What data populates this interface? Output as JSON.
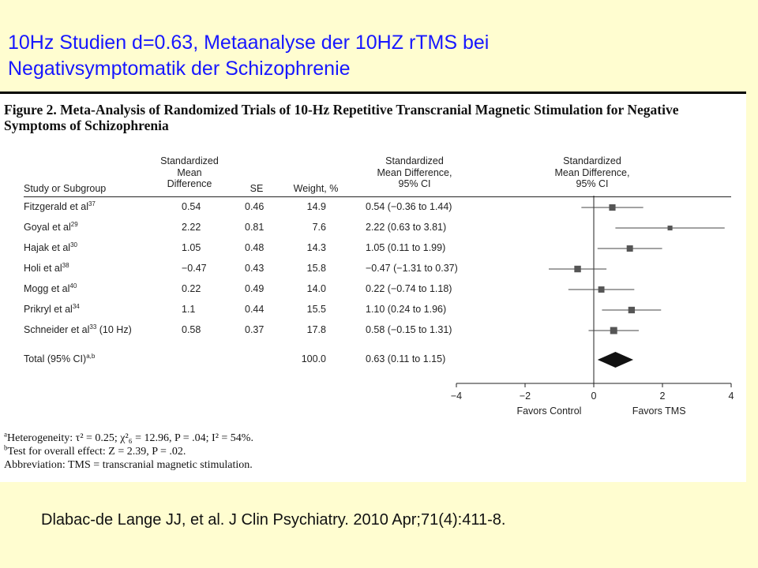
{
  "slide": {
    "title_line1": "10Hz Studien d=0.63, Metaanalyse der 10HZ rTMS bei",
    "title_line2": "Negativsymptomatik der Schizophrenie",
    "citation": "Dlabac-de Lange JJ, et al. J Clin Psychiatry. 2010 Apr;71(4):411-8."
  },
  "figure": {
    "caption_line1": "Figure 2. Meta-Analysis of Randomized Trials of 10-Hz Repetitive Transcranial Magnetic Stimulation for Negative",
    "caption_line2": "Symptoms of Schizophrenia",
    "headers": {
      "study": "Study or Subgroup",
      "smd": "Standardized\nMean\nDifference",
      "se": "SE",
      "weight": "Weight, %",
      "ci": "Standardized\nMean Difference,\n95% CI",
      "plot": "Standardized\nMean Difference,\n95% CI"
    },
    "footnotes": {
      "a_mark": "a",
      "a_text": "Heterogeneity: τ² = 0.25; χ²₆ = 12.96, P = .04; I² = 54%.",
      "b_mark": "b",
      "b_text": "Test for overall effect: Z = 2.39, P = .02.",
      "abbreviation": "Abbreviation: TMS = transcranial magnetic stimulation."
    }
  },
  "chart_data": {
    "type": "forest",
    "xlim": [
      -4,
      4
    ],
    "xticks": [
      "−4",
      "−2",
      "0",
      "2",
      "4"
    ],
    "xtick_values": [
      -4,
      -2,
      0,
      2,
      4
    ],
    "xlabel_left": "Favors Control",
    "xlabel_right": "Favors TMS",
    "marker_color": "#555555",
    "studies": [
      {
        "name": "Fitzgerald et al",
        "ref": "37",
        "smd_label": "0.54",
        "se": "0.46",
        "weight": "14.9",
        "ci_label": "0.54 (−0.36 to 1.44)",
        "est": 0.54,
        "lo": -0.36,
        "hi": 1.44
      },
      {
        "name": "Goyal et al",
        "ref": "29",
        "smd_label": "2.22",
        "se": "0.81",
        "weight": "7.6",
        "ci_label": "2.22 (0.63 to 3.81)",
        "est": 2.22,
        "lo": 0.63,
        "hi": 3.81
      },
      {
        "name": "Hajak et al",
        "ref": "30",
        "smd_label": "1.05",
        "se": "0.48",
        "weight": "14.3",
        "ci_label": "1.05 (0.11 to 1.99)",
        "est": 1.05,
        "lo": 0.11,
        "hi": 1.99
      },
      {
        "name": "Holi et al",
        "ref": "38",
        "smd_label": "−0.47",
        "se": "0.43",
        "weight": "15.8",
        "ci_label": "−0.47 (−1.31 to 0.37)",
        "est": -0.47,
        "lo": -1.31,
        "hi": 0.37
      },
      {
        "name": "Mogg et al",
        "ref": "40",
        "smd_label": "0.22",
        "se": "0.49",
        "weight": "14.0",
        "ci_label": "0.22 (−0.74 to 1.18)",
        "est": 0.22,
        "lo": -0.74,
        "hi": 1.18
      },
      {
        "name": "Prikryl et al",
        "ref": "34",
        "smd_label": "1.1",
        "se": "0.44",
        "weight": "15.5",
        "ci_label": "1.10 (0.24 to 1.96)",
        "est": 1.1,
        "lo": 0.24,
        "hi": 1.96
      },
      {
        "name": "Schneider et al",
        "ref": "33",
        "name_suffix": " (10 Hz)",
        "smd_label": "0.58",
        "se": "0.37",
        "weight": "17.8",
        "ci_label": "0.58 (−0.15 to 1.31)",
        "est": 0.58,
        "lo": -0.15,
        "hi": 1.31
      }
    ],
    "total": {
      "name": "Total (95% CI)",
      "ref": "a,b",
      "weight": "100.0",
      "ci_label": "0.63 (0.11 to 1.15)",
      "est": 0.63,
      "lo": 0.11,
      "hi": 1.15
    }
  }
}
